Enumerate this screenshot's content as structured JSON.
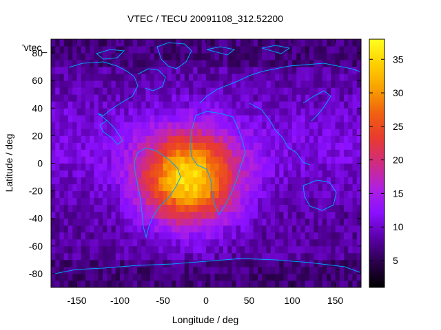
{
  "chart_data": {
    "type": "heatmap",
    "title": "VTEC / TECU 20091108_312.52200",
    "xlabel": "Longitude / deg",
    "ylabel": "Latitude / deg",
    "legend_label": "'vtec_",
    "xlim": [
      -180,
      180
    ],
    "ylim": [
      -90,
      90
    ],
    "x_ticks": [
      -150,
      -100,
      -50,
      0,
      50,
      100,
      150
    ],
    "y_ticks": [
      -80,
      -60,
      -40,
      -20,
      0,
      20,
      40,
      60,
      80
    ],
    "colorbar": {
      "range": [
        1,
        38
      ],
      "ticks": [
        5,
        10,
        15,
        20,
        25,
        30,
        35
      ],
      "colors": [
        "#000000",
        "#2a004a",
        "#5a00a8",
        "#8a10ff",
        "#b020e0",
        "#d02c80",
        "#e83a30",
        "#f06010",
        "#f8a000",
        "#ffd000",
        "#ffff20"
      ]
    },
    "ionization_peak": {
      "center_lon": -20,
      "center_lat": -12,
      "peak_vtec": 36
    },
    "grid": false,
    "coastline_color": "#00a0ff"
  }
}
